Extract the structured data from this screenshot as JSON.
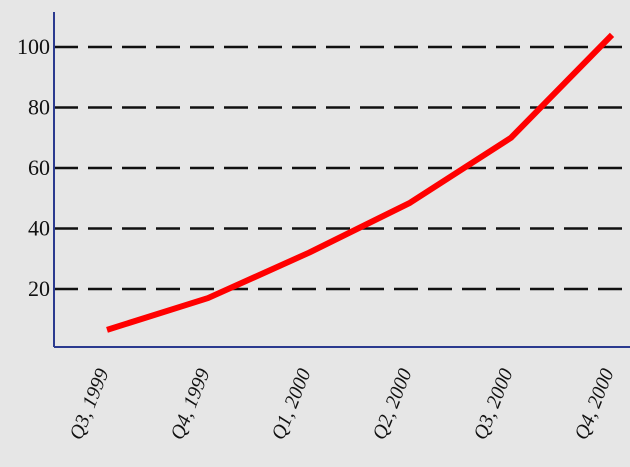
{
  "chart_data": {
    "type": "line",
    "title": "",
    "xlabel": "",
    "ylabel": "",
    "categories": [
      "Q3, 1999",
      "Q4, 1999",
      "Q1, 2000",
      "Q2, 2000",
      "Q3, 2000",
      "Q4, 2000"
    ],
    "series": [
      {
        "values": [
          6.5,
          17,
          32,
          48.5,
          70,
          104
        ]
      }
    ],
    "y_ticks": [
      20,
      40,
      60,
      80,
      100
    ],
    "y_tick_labels": [
      "20",
      "40",
      "60",
      "80",
      "100"
    ],
    "ylim": [
      -10,
      112
    ],
    "grid": "horizontal dashed",
    "legend": "none",
    "colors": {
      "background": "#e6e6e6",
      "axis": "#2b3a8f",
      "grid": "#111111",
      "line": "#ff0000"
    }
  }
}
